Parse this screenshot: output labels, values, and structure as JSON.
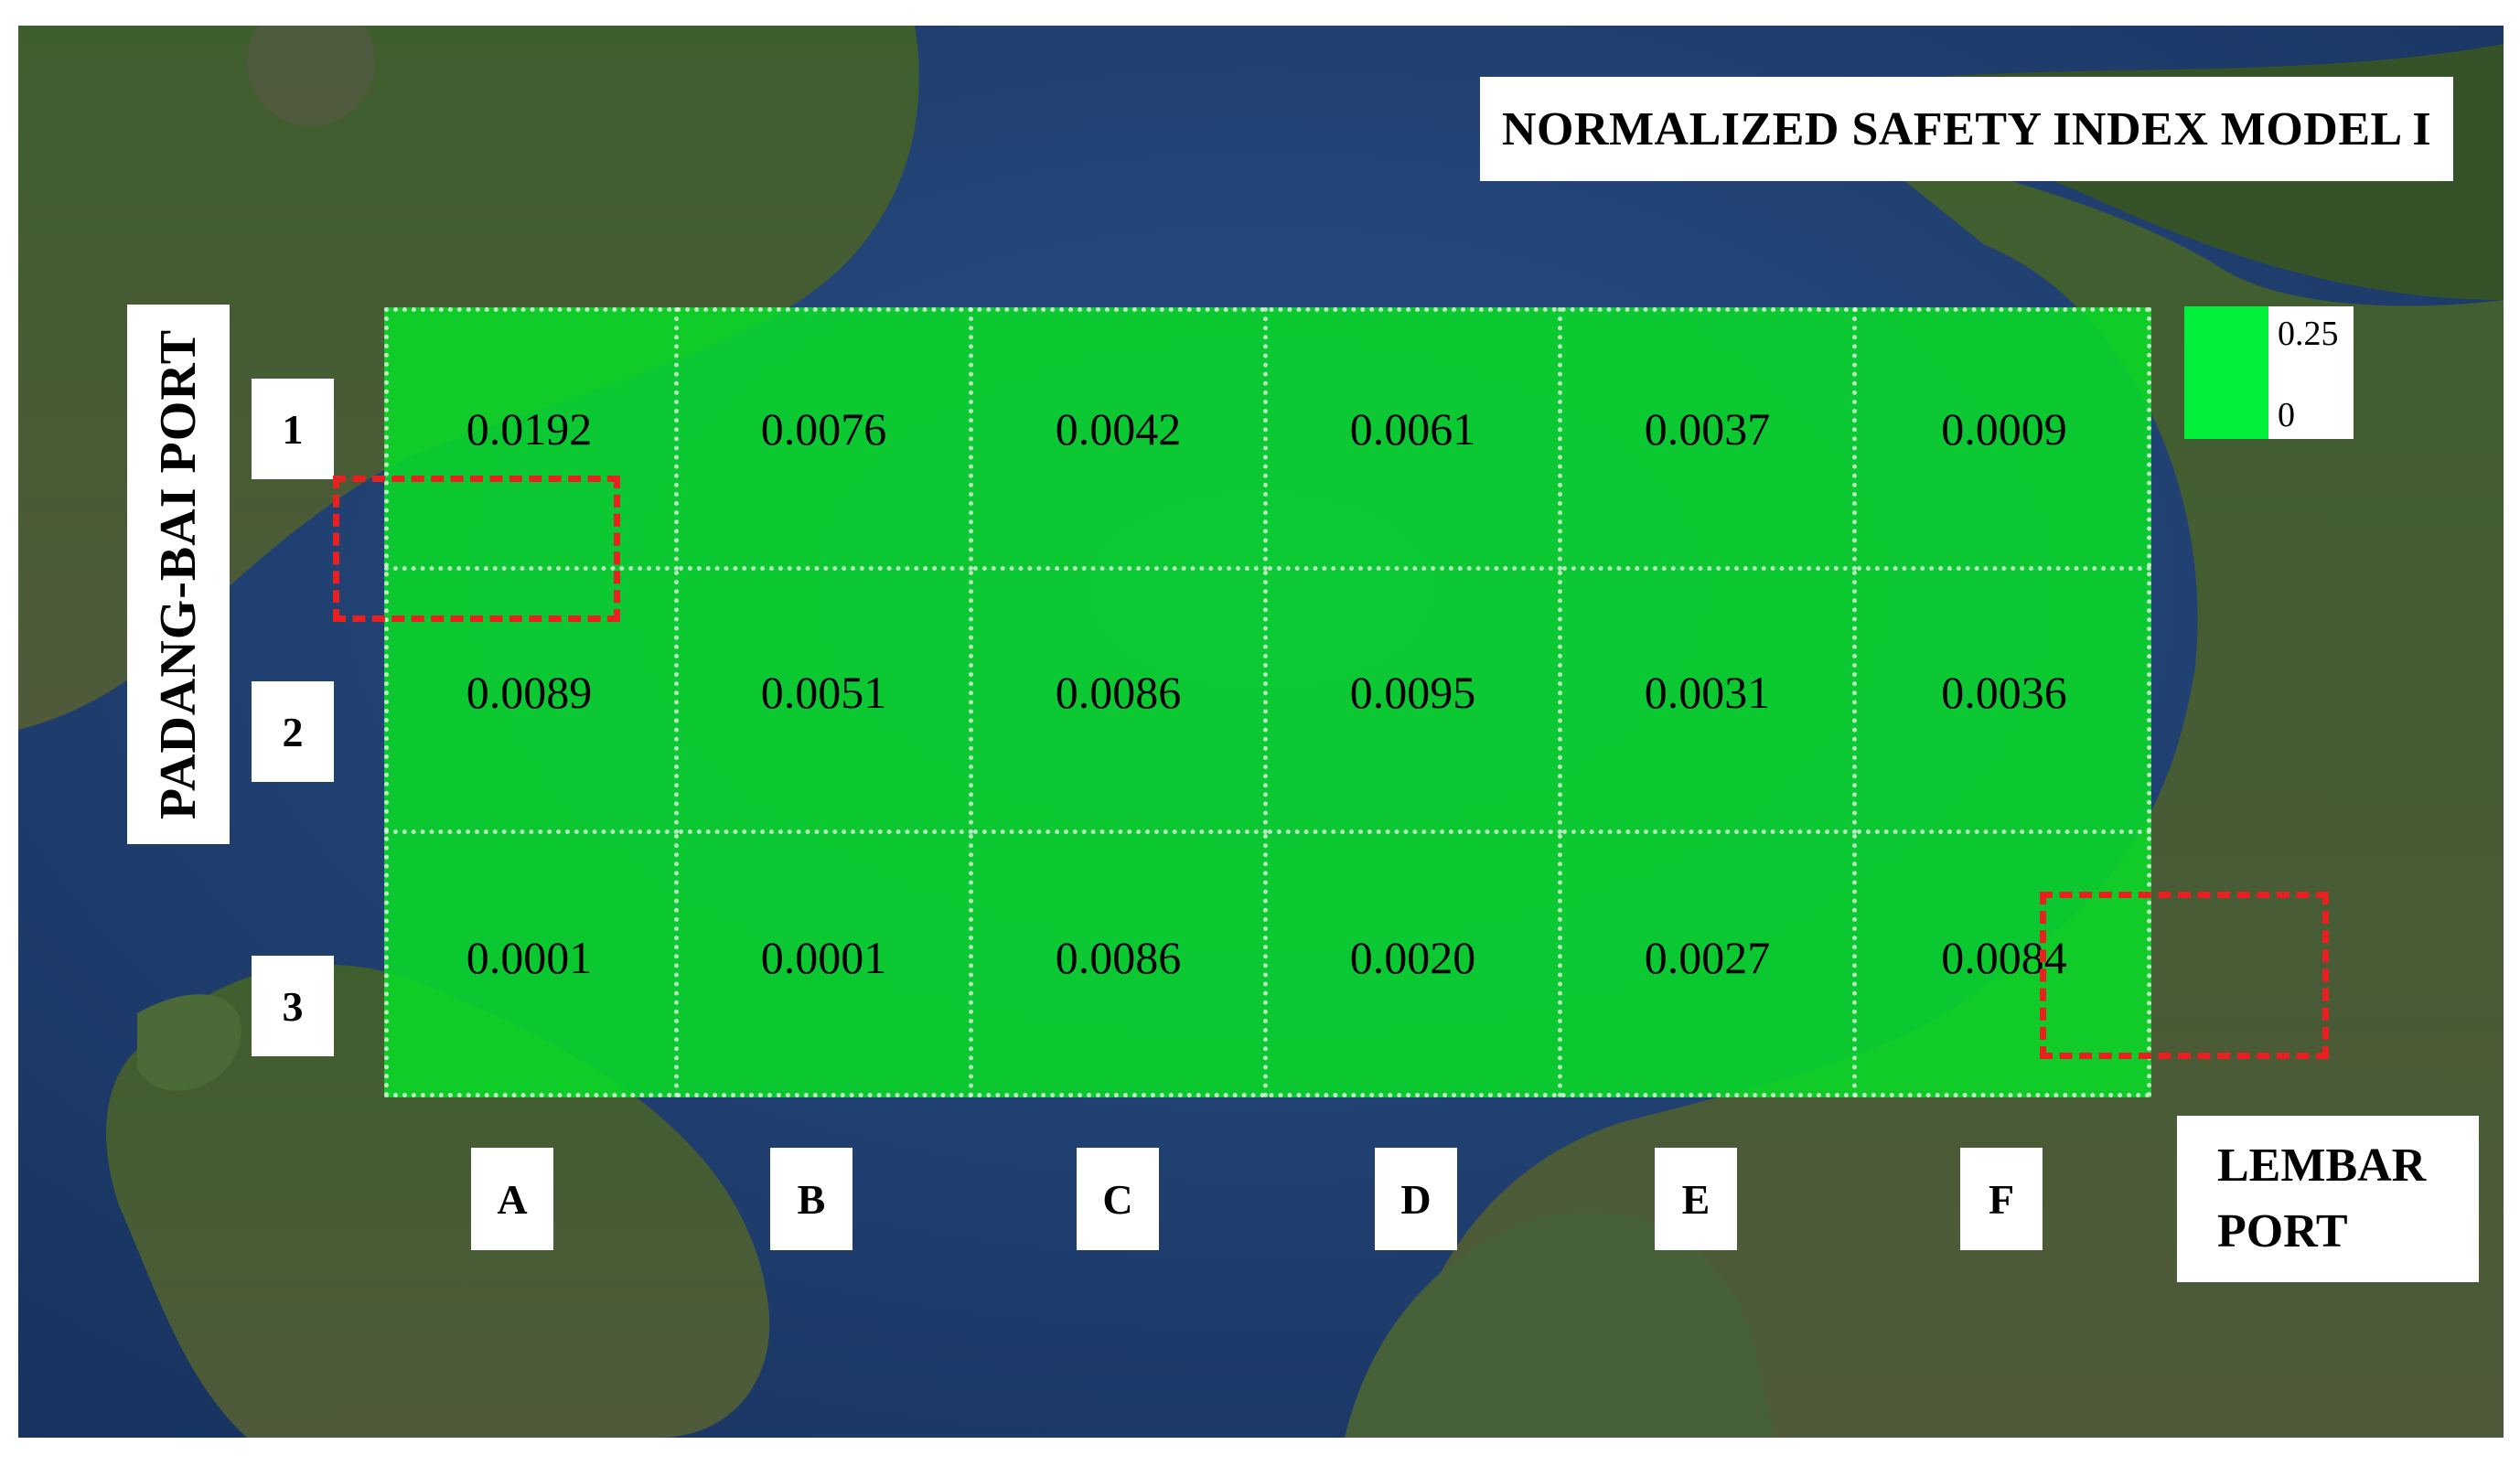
{
  "title": "NORMALIZED SAFETY INDEX MODEL I",
  "ports": {
    "left": "PADANG-BAI  PORT",
    "right_line1": "LEMBAR",
    "right_line2": "PORT"
  },
  "rows": [
    "1",
    "2",
    "3"
  ],
  "columns": [
    "A",
    "B",
    "C",
    "D",
    "E",
    "F"
  ],
  "cells": [
    [
      "0.0192",
      "0.0076",
      "0.0042",
      "0.0061",
      "0.0037",
      "0.0009"
    ],
    [
      "0.0089",
      "0.0051",
      "0.0086",
      "0.0095",
      "0.0031",
      "0.0036"
    ],
    [
      "0.0001",
      "0.0001",
      "0.0086",
      "0.0020",
      "0.0027",
      "0.0084"
    ]
  ],
  "legend": {
    "max": "0.25",
    "min": "0",
    "color": "#00f03c"
  },
  "colors": {
    "grid_fill": "#08de26",
    "highlight": "#e8201f",
    "sea": "#1f3f73",
    "land": "#3d5a2c"
  }
}
